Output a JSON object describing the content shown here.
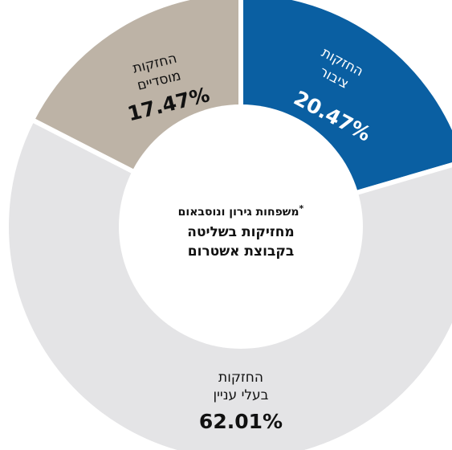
{
  "chart_data": {
    "type": "pie",
    "center_label": {
      "line1": "משפחות גירון ונוסבאום",
      "line1_mark": "*",
      "line2": "מחזיקות בשליטה",
      "line3": "בקבוצת אשטרום"
    },
    "slices": [
      {
        "name_line1": "החזקות",
        "name_line2": "ציבור",
        "label": "20.47%",
        "value": 20.47,
        "color": "#0a5fa2",
        "text_color": "#ffffff"
      },
      {
        "name_line1": "החזקות",
        "name_line2": "בעלי עניין",
        "label": "62.01%",
        "value": 62.01,
        "color": "#e4e4e6",
        "text_color": "#111111"
      },
      {
        "name_line1": "החזקות",
        "name_line2": "מוסדיים",
        "label": "17.47%",
        "value": 17.47,
        "color": "#bdb3a6",
        "text_color": "#111111"
      }
    ]
  }
}
